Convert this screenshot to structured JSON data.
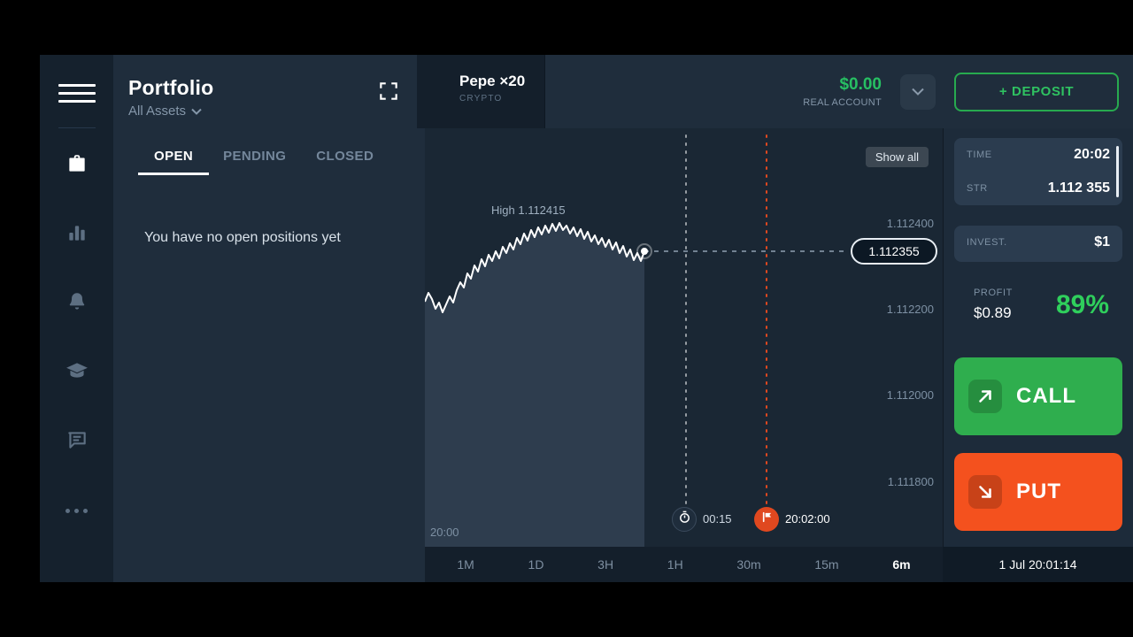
{
  "colors": {
    "accent_green": "#2fae4e",
    "accent_red": "#f4511e",
    "balance_green": "#27c063",
    "profit_green": "#2fcf5c",
    "panel_bg": "#1f2d3c",
    "chart_bg": "#1a2734"
  },
  "sidebar": {
    "icons": [
      "menu",
      "briefcase",
      "bar-chart",
      "bell",
      "graduation-cap",
      "chat",
      "more"
    ]
  },
  "header": {
    "title": "Portfolio",
    "filter": "All Assets",
    "asset": {
      "name": "Pepe ×20",
      "category": "CRYPTO"
    },
    "account": {
      "balance": "$0.00",
      "type": "REAL ACCOUNT"
    },
    "deposit_label": "+ DEPOSIT"
  },
  "portfolio": {
    "tabs": [
      "OPEN",
      "PENDING",
      "CLOSED"
    ],
    "active_tab": "OPEN",
    "empty_message": "You have no open positions yet"
  },
  "chart": {
    "show_all": "Show all",
    "high_label": "High 1.112415",
    "current_price": "1.112355",
    "axis_labels": [
      "1.112400",
      "1.112200",
      "1.112000",
      "1.111800"
    ],
    "start_time": "20:00",
    "countdown": "00:15",
    "expiry": "20:02:00",
    "sparkline": [
      [
        0,
        196
      ],
      [
        4,
        186
      ],
      [
        8,
        193
      ],
      [
        12,
        204
      ],
      [
        16,
        197
      ],
      [
        20,
        208
      ],
      [
        24,
        199
      ],
      [
        28,
        190
      ],
      [
        32,
        197
      ],
      [
        36,
        183
      ],
      [
        40,
        174
      ],
      [
        44,
        180
      ],
      [
        48,
        164
      ],
      [
        52,
        170
      ],
      [
        56,
        155
      ],
      [
        60,
        162
      ],
      [
        64,
        148
      ],
      [
        68,
        156
      ],
      [
        72,
        143
      ],
      [
        76,
        150
      ],
      [
        80,
        139
      ],
      [
        84,
        147
      ],
      [
        88,
        134
      ],
      [
        92,
        141
      ],
      [
        96,
        130
      ],
      [
        100,
        137
      ],
      [
        104,
        124
      ],
      [
        108,
        131
      ],
      [
        112,
        119
      ],
      [
        116,
        127
      ],
      [
        120,
        115
      ],
      [
        124,
        123
      ],
      [
        128,
        112
      ],
      [
        132,
        120
      ],
      [
        136,
        110
      ],
      [
        140,
        118
      ],
      [
        144,
        108
      ],
      [
        148,
        116
      ],
      [
        152,
        107
      ],
      [
        156,
        115
      ],
      [
        160,
        110
      ],
      [
        164,
        119
      ],
      [
        168,
        112
      ],
      [
        172,
        122
      ],
      [
        176,
        114
      ],
      [
        180,
        125
      ],
      [
        184,
        117
      ],
      [
        188,
        128
      ],
      [
        192,
        121
      ],
      [
        196,
        131
      ],
      [
        200,
        124
      ],
      [
        204,
        134
      ],
      [
        208,
        126
      ],
      [
        212,
        137
      ],
      [
        216,
        129
      ],
      [
        220,
        141
      ],
      [
        224,
        133
      ],
      [
        228,
        145
      ],
      [
        232,
        137
      ],
      [
        236,
        149
      ],
      [
        240,
        141
      ],
      [
        244,
        150
      ],
      [
        248,
        139
      ]
    ]
  },
  "timeframes": {
    "items": [
      "1M",
      "1D",
      "3H",
      "1H",
      "30m",
      "15m",
      "6m"
    ],
    "active": "6m",
    "clock": "1 Jul 20:01:14"
  },
  "trade": {
    "time_label": "TIME",
    "time_value": "20:02",
    "strike_label": "STR",
    "strike_value": "1.112 355",
    "invest_label": "INVEST.",
    "invest_value": "$1",
    "profit_label": "PROFIT",
    "profit_amount": "$0.89",
    "profit_percent": "89%",
    "call_label": "CALL",
    "put_label": "PUT"
  }
}
